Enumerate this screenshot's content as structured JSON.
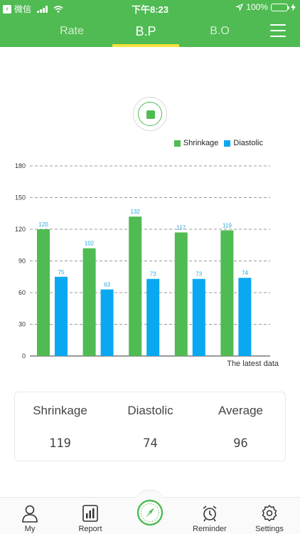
{
  "statusbar": {
    "carrier": "微信",
    "time": "下午8:23",
    "battery": "100%"
  },
  "tabs": [
    {
      "label": "Rate"
    },
    {
      "label": "B.P"
    },
    {
      "label": "B.O"
    }
  ],
  "colors": {
    "header": "#4fbb52",
    "shrinkage": "#4fbb52",
    "diastolic": "#0aa8f1",
    "tab_underline": "#f4e13a"
  },
  "chart_data": {
    "type": "bar",
    "categories": [
      "",
      "",
      "",
      "",
      ""
    ],
    "series": [
      {
        "name": "Shrinkage",
        "values": [
          120,
          102,
          132,
          117,
          119
        ]
      },
      {
        "name": "Diastolic",
        "values": [
          75,
          63,
          73,
          73,
          74
        ]
      }
    ],
    "yticks": [
      0,
      30,
      60,
      90,
      120,
      150,
      180
    ],
    "ylim": [
      0,
      180
    ],
    "grid": true,
    "legend": "top-right",
    "caption": "The latest data"
  },
  "stats": [
    {
      "label": "Shrinkage",
      "value": "119"
    },
    {
      "label": "Diastolic",
      "value": "74"
    },
    {
      "label": "Average",
      "value": "96"
    }
  ],
  "nav": {
    "my": "My",
    "report": "Report",
    "reminder": "Reminder",
    "settings": "Settings",
    "center_icon": "compass-gauge-icon"
  }
}
